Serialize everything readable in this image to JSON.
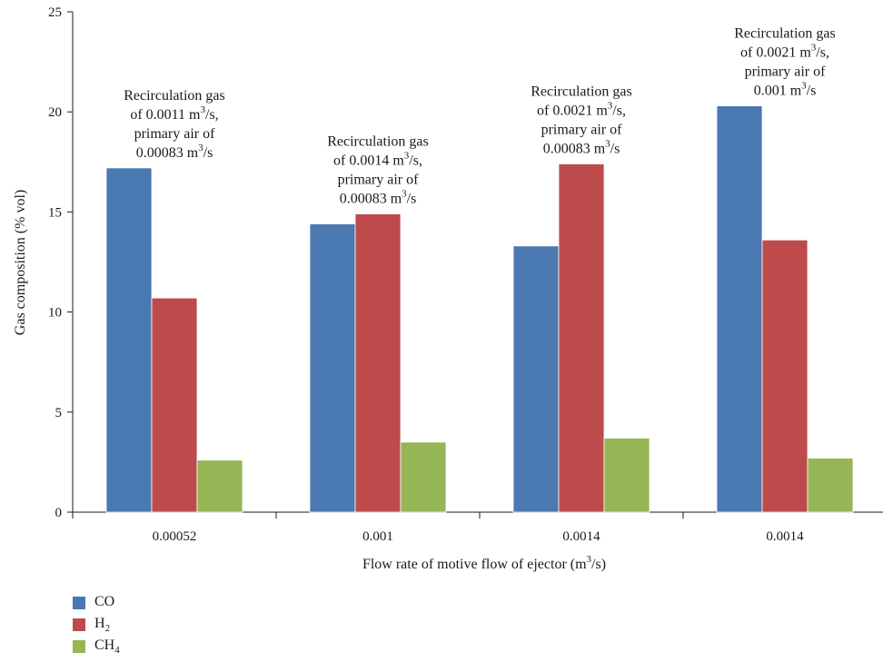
{
  "chart_data": {
    "type": "bar",
    "categories": [
      "0.00052",
      "0.001",
      "0.0014",
      "0.0014"
    ],
    "series": [
      {
        "name": "CO",
        "values": [
          17.2,
          14.4,
          13.3,
          20.3
        ]
      },
      {
        "name": "H2",
        "values": [
          10.7,
          14.9,
          17.4,
          13.6
        ]
      },
      {
        "name": "CH4",
        "values": [
          2.6,
          3.5,
          3.7,
          2.7
        ]
      }
    ],
    "colors": [
      "#4a78b0",
      "#bd4b4b",
      "#96b655"
    ],
    "xlabel": "Flow rate of motive flow of ejector (m",
    "xlabel_sup": "3",
    "xlabel_tail": "/s)",
    "ylabel": "Gas composition (% vol)",
    "ylim": [
      0,
      25
    ],
    "yticks": [
      0,
      5,
      10,
      15,
      20,
      25
    ],
    "grid": false,
    "legend_position": "bottom-left",
    "annotations": [
      {
        "lines": [
          [
            "Recirculation gas"
          ],
          [
            "of 0.0011 m",
            "3",
            "/s,"
          ],
          [
            "primary air of"
          ],
          [
            "0.00083 m",
            "3",
            "/s"
          ]
        ]
      },
      {
        "lines": [
          [
            "Recirculation gas"
          ],
          [
            "of 0.0014 m",
            "3",
            "/s,"
          ],
          [
            "primary air of"
          ],
          [
            "0.00083 m",
            "3",
            "/s"
          ]
        ]
      },
      {
        "lines": [
          [
            "Recirculation gas"
          ],
          [
            "of 0.0021 m",
            "3",
            "/s,"
          ],
          [
            "primary air of"
          ],
          [
            "0.00083 m",
            "3",
            "/s"
          ]
        ]
      },
      {
        "lines": [
          [
            "Recirculation gas"
          ],
          [
            "of 0.0021 m",
            "3",
            "/s,"
          ],
          [
            "primary air of"
          ],
          [
            "0.001 m",
            "3",
            "/s"
          ]
        ]
      }
    ]
  },
  "legend": {
    "items": [
      {
        "label": "CO",
        "sub": ""
      },
      {
        "label": "H",
        "sub": "2"
      },
      {
        "label": "CH",
        "sub": "4"
      }
    ]
  }
}
